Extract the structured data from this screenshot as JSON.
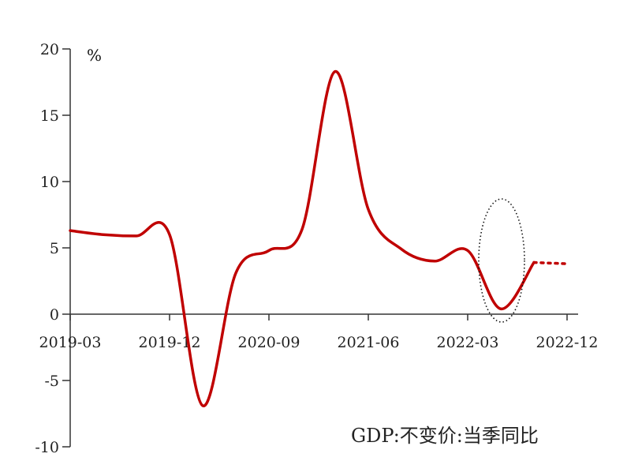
{
  "chart_data": {
    "type": "line",
    "y_unit": "%",
    "ylim": [
      -10,
      20
    ],
    "y_ticks": [
      20,
      15,
      10,
      5,
      0,
      -5,
      -10
    ],
    "x_tick_labels": [
      "2019-03",
      "2019-12",
      "2020-09",
      "2021-06",
      "2022-03",
      "2022-12"
    ],
    "caption": "GDP:不变价:当季同比",
    "grid": false,
    "series": [
      {
        "line_color": "#c00000",
        "x": [
          "2019-03",
          "2019-06",
          "2019-09",
          "2019-12",
          "2020-03",
          "2020-06",
          "2020-09",
          "2020-12",
          "2021-03",
          "2021-06",
          "2021-09",
          "2021-12",
          "2022-03",
          "2022-06",
          "2022-09"
        ],
        "values": [
          6.3,
          6.0,
          5.9,
          6.0,
          -6.9,
          3.1,
          4.8,
          6.4,
          18.3,
          7.9,
          4.9,
          4.0,
          4.8,
          0.4,
          3.9
        ]
      },
      {
        "style": "dotted-forecast",
        "line_color": "#c00000",
        "x": [
          "2022-09",
          "2022-12"
        ],
        "values": [
          3.9,
          3.8
        ]
      }
    ],
    "annotation": {
      "shape": "dotted-ellipse",
      "around_x": "2022-06"
    }
  }
}
